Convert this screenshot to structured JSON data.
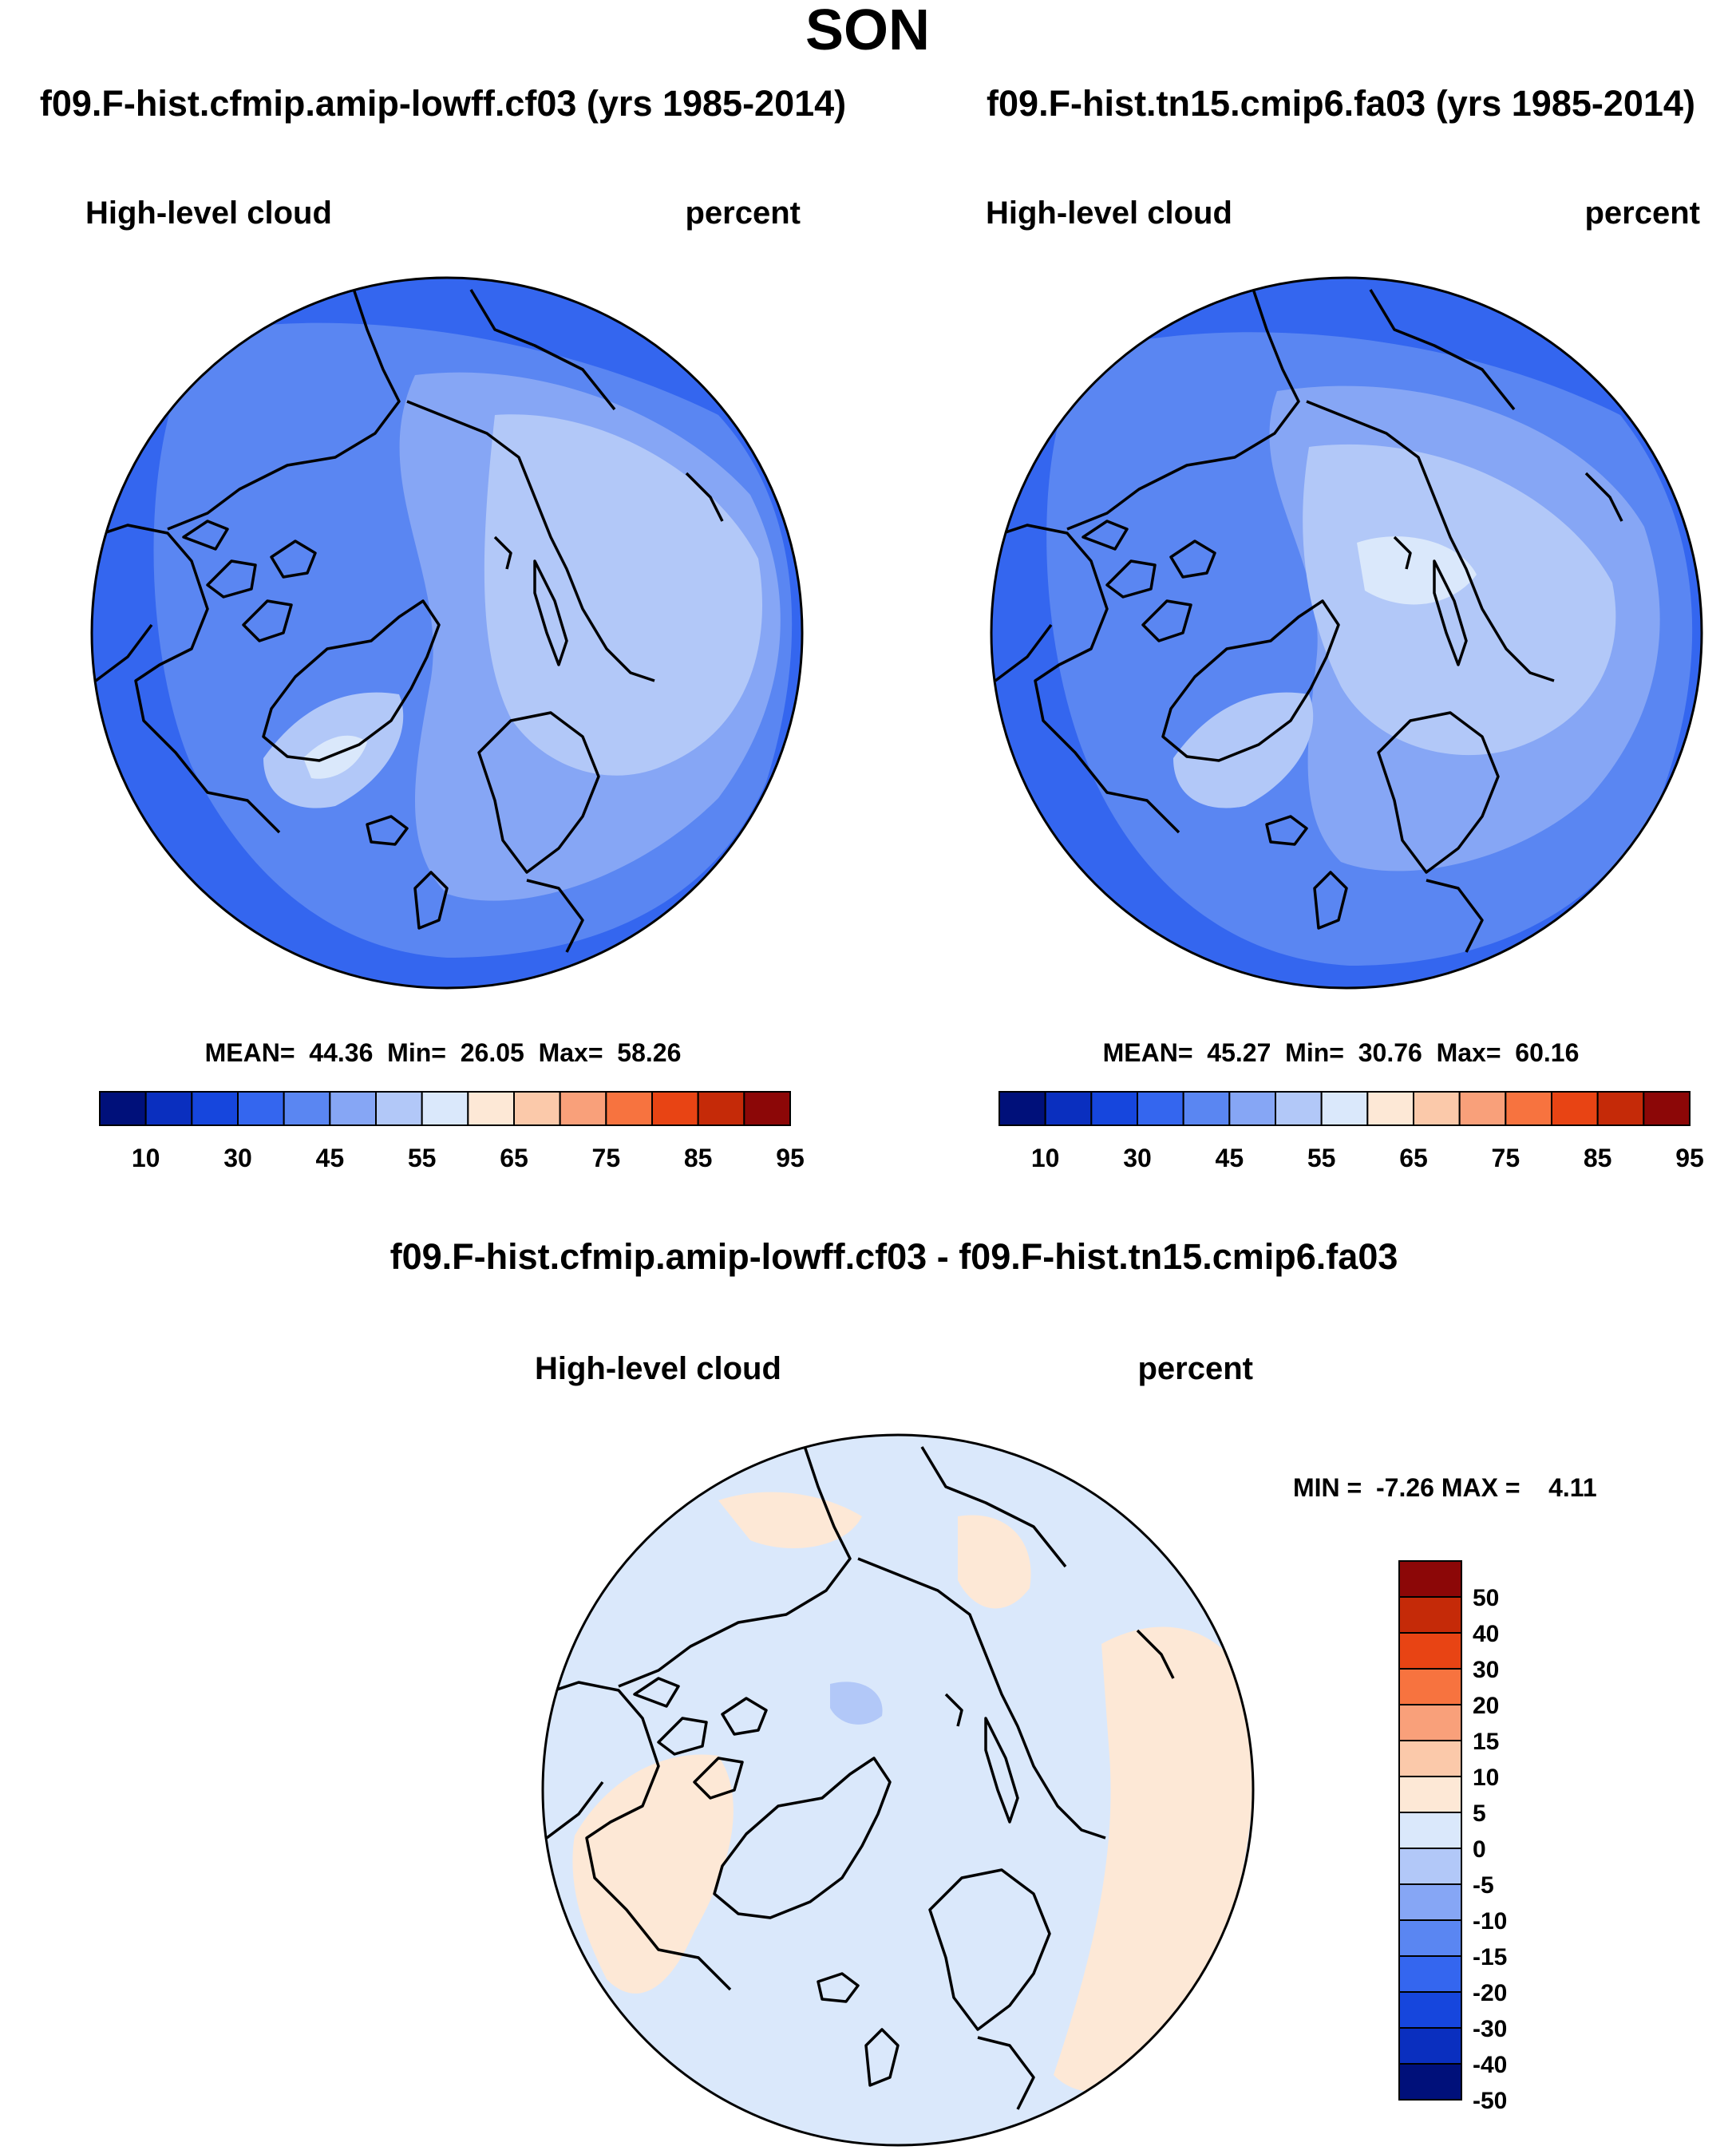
{
  "title": "SON",
  "panels": [
    {
      "heading": "f09.F-hist.cfmip.amip-lowff.cf03 (yrs 1985-2014)",
      "variable": "High-level cloud",
      "units": "percent",
      "stats": "MEAN=  44.36  Min=  26.05  Max=  58.26"
    },
    {
      "heading": "f09.F-hist.tn15.cmip6.fa03 (yrs 1985-2014)",
      "variable": "High-level cloud",
      "units": "percent",
      "stats": "MEAN=  45.27  Min=  30.76  Max=  60.16"
    },
    {
      "heading": "f09.F-hist.cfmip.amip-lowff.cf03 - f09.F-hist.tn15.cmip6.fa03",
      "variable": "High-level cloud",
      "units": "percent",
      "stats": "MIN =  -7.26 MAX =    4.11"
    }
  ],
  "abs_colorbar": {
    "colors": [
      "#00107a",
      "#0a2fbf",
      "#1646dd",
      "#3466ef",
      "#5a86f2",
      "#86a6f5",
      "#b2c8f8",
      "#dae8fb",
      "#fde8d6",
      "#fbc9aa",
      "#f9a07a",
      "#f7733f",
      "#e84414",
      "#c52a08",
      "#8c0707"
    ],
    "tick_labels": [
      "10",
      "30",
      "45",
      "55",
      "65",
      "75",
      "85",
      "95"
    ]
  },
  "diff_colorbar": {
    "colors_top_to_bottom": [
      "#8c0707",
      "#c52a08",
      "#e84414",
      "#f7733f",
      "#f9a07a",
      "#fbc9aa",
      "#fde8d6",
      "#dae8fb",
      "#b2c8f8",
      "#86a6f5",
      "#5a86f2",
      "#3466ef",
      "#1646dd",
      "#0a2fbf",
      "#00107a"
    ],
    "tick_labels": [
      "50",
      "40",
      "30",
      "20",
      "15",
      "10",
      "5",
      "0",
      "-5",
      "-10",
      "-15",
      "-20",
      "-30",
      "-40",
      "-50"
    ]
  },
  "map_colors": {
    "abs_dark": "#3466ef",
    "abs_mid": "#5a86f2",
    "abs_light": "#86a6f5",
    "abs_lighter": "#b2c8f8",
    "abs_lightest": "#dae8fb",
    "diff_base": "#dae8fb",
    "diff_pos": "#fde8d6",
    "diff_neg": "#b2c8f8"
  }
}
